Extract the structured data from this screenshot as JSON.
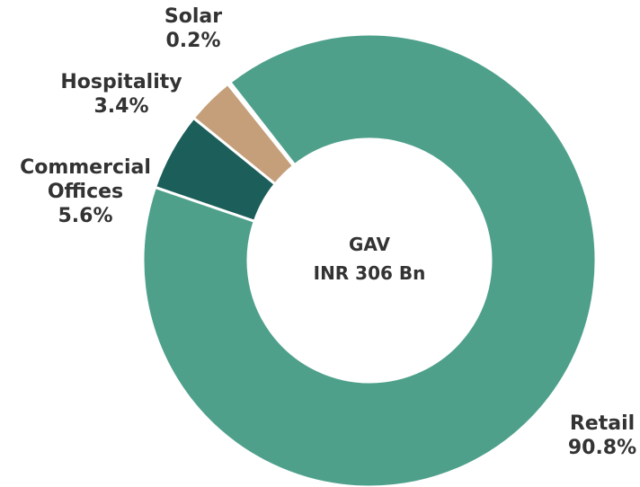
{
  "chart_data": {
    "type": "donut",
    "center_text": [
      "GAV",
      "INR 306 Bn"
    ],
    "categories": [
      "Retail",
      "Commercial Offices",
      "Hospitality",
      "Solar"
    ],
    "values": [
      90.8,
      5.6,
      3.4,
      0.2
    ],
    "value_labels": [
      "90.8%",
      "5.6%",
      "3.4%",
      "0.2%"
    ],
    "colors": [
      "#4ea08b",
      "#1c5e5a",
      "#c49f7a",
      "#c9a57f"
    ]
  }
}
